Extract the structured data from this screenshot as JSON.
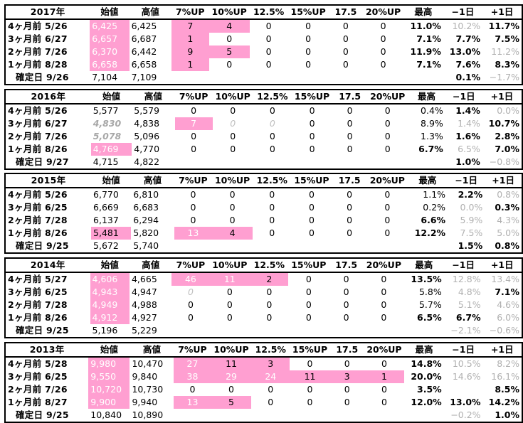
{
  "headers": [
    "始値",
    "高値",
    "7%UP",
    "10%UP",
    "12.5%",
    "15%UP",
    "17.5",
    "20%UP",
    "最高",
    "−1日",
    "+1日"
  ],
  "blocks": [
    {
      "year": "2017年",
      "rows": [
        {
          "label": "4ヶ月前  5/26",
          "open": "6,425",
          "high": "6,425",
          "c": [
            "7",
            "4",
            "0",
            "0",
            "0",
            "0"
          ],
          "max": "11.0%",
          "m1": "10.2%",
          "p1": "11.7%"
        },
        {
          "label": "3ヶ月前  6/27",
          "open": "6,657",
          "high": "6,687",
          "c": [
            "1",
            "0",
            "0",
            "0",
            "0",
            "0"
          ],
          "max": "7.1%",
          "m1": "7.7%",
          "p1": "7.5%"
        },
        {
          "label": "2ヶ月前  7/26",
          "open": "6,370",
          "high": "6,442",
          "c": [
            "9",
            "5",
            "0",
            "0",
            "0",
            "0"
          ],
          "max": "11.9%",
          "m1": "13.0%",
          "p1": "11.2%"
        },
        {
          "label": "1ヶ月前  8/28",
          "open": "6,658",
          "high": "6,658",
          "c": [
            "1",
            "0",
            "0",
            "0",
            "0",
            "0"
          ],
          "max": "7.1%",
          "m1": "7.6%",
          "p1": "8.3%"
        }
      ],
      "confirm": {
        "label": "確定日  9/26",
        "open": "7,104",
        "high": "7,109",
        "m1": "0.1%",
        "p1": "−1.7%"
      }
    },
    {
      "year": "2016年",
      "rows": [
        {
          "label": "4ヶ月前  5/26",
          "open": "5,577",
          "high": "5,579",
          "c": [
            "0",
            "0",
            "0",
            "0",
            "0",
            "0"
          ],
          "max": "0.4%",
          "m1": "1.4%",
          "p1": "0.0%"
        },
        {
          "label": "3ヶ月前  6/27",
          "open": "4,830",
          "high": "4,838",
          "c": [
            "7",
            "0",
            "0",
            "0",
            "0",
            "0"
          ],
          "max": "8.9%",
          "m1": "1.4%",
          "p1": "10.7%"
        },
        {
          "label": "2ヶ月前  7/26",
          "open": "5,078",
          "high": "5,096",
          "c": [
            "0",
            "0",
            "0",
            "0",
            "0",
            "0"
          ],
          "max": "1.3%",
          "m1": "1.6%",
          "p1": "2.8%"
        },
        {
          "label": "1ヶ月前  8/26",
          "open": "4,769",
          "high": "4,770",
          "c": [
            "0",
            "0",
            "0",
            "0",
            "0",
            "0"
          ],
          "max": "6.7%",
          "m1": "6.5%",
          "p1": "7.0%"
        }
      ],
      "confirm": {
        "label": "確定日  9/27",
        "open": "4,715",
        "high": "4,822",
        "m1": "1.0%",
        "p1": "−0.8%"
      }
    },
    {
      "year": "2015年",
      "rows": [
        {
          "label": "4ヶ月前  5/26",
          "open": "6,770",
          "high": "6,810",
          "c": [
            "0",
            "0",
            "0",
            "0",
            "0",
            "0"
          ],
          "max": "1.1%",
          "m1": "2.2%",
          "p1": "0.8%"
        },
        {
          "label": "3ヶ月前  6/25",
          "open": "6,669",
          "high": "6,683",
          "c": [
            "0",
            "0",
            "0",
            "0",
            "0",
            "0"
          ],
          "max": "0.2%",
          "m1": "0.0%",
          "p1": "0.3%"
        },
        {
          "label": "2ヶ月前  7/28",
          "open": "6,137",
          "high": "6,294",
          "c": [
            "0",
            "0",
            "0",
            "0",
            "0",
            "0"
          ],
          "max": "6.6%",
          "m1": "5.9%",
          "p1": "4.3%"
        },
        {
          "label": "1ヶ月前  8/26",
          "open": "5,481",
          "high": "5,820",
          "c": [
            "13",
            "4",
            "0",
            "0",
            "0",
            "0"
          ],
          "max": "12.2%",
          "m1": "7.5%",
          "p1": "5.0%"
        }
      ],
      "confirm": {
        "label": "確定日  9/25",
        "open": "5,672",
        "high": "5,740",
        "m1": "1.5%",
        "p1": "0.8%"
      }
    },
    {
      "year": "2014年",
      "rows": [
        {
          "label": "4ヶ月前  5/27",
          "open": "4,606",
          "high": "4,665",
          "c": [
            "46",
            "11",
            "2",
            "0",
            "0",
            "0"
          ],
          "max": "13.5%",
          "m1": "12.8%",
          "p1": "13.4%"
        },
        {
          "label": "3ヶ月前  6/25",
          "open": "4,943",
          "high": "4,947",
          "c": [
            "0",
            "0",
            "0",
            "0",
            "0",
            "0"
          ],
          "max": "5.8%",
          "m1": "4.8%",
          "p1": "7.1%"
        },
        {
          "label": "2ヶ月前  7/28",
          "open": "4,949",
          "high": "4,988",
          "c": [
            "0",
            "0",
            "0",
            "0",
            "0",
            "0"
          ],
          "max": "5.7%",
          "m1": "5.1%",
          "p1": "4.6%"
        },
        {
          "label": "1ヶ月前  8/26",
          "open": "4,912",
          "high": "4,927",
          "c": [
            "0",
            "0",
            "0",
            "0",
            "0",
            "0"
          ],
          "max": "6.5%",
          "m1": "6.7%",
          "p1": "6.0%"
        }
      ],
      "confirm": {
        "label": "確定日  9/25",
        "open": "5,196",
        "high": "5,229",
        "m1": "−2.1%",
        "p1": "−0.6%"
      }
    },
    {
      "year": "2013年",
      "rows": [
        {
          "label": "4ヶ月前  5/28",
          "open": "9,980",
          "high": "10,470",
          "c": [
            "27",
            "11",
            "3",
            "0",
            "0",
            "0"
          ],
          "max": "14.8%",
          "m1": "10.5%",
          "p1": "8.2%"
        },
        {
          "label": "3ヶ月前  6/25",
          "open": "9,550",
          "high": "9,840",
          "c": [
            "38",
            "29",
            "24",
            "11",
            "3",
            "1"
          ],
          "max": "20.0%",
          "m1": "14.6%",
          "p1": "16.1%"
        },
        {
          "label": "2ヶ月前  7/26",
          "open": "10,720",
          "high": "10,730",
          "c": [
            "0",
            "0",
            "0",
            "0",
            "0",
            "0"
          ],
          "max": "3.5%",
          "m1": "2.5%",
          "p1": "8.5%"
        },
        {
          "label": "1ヶ月前  8/27",
          "open": "9,900",
          "high": "9,940",
          "c": [
            "13",
            "5",
            "0",
            "0",
            "0",
            "0"
          ],
          "max": "12.0%",
          "m1": "13.0%",
          "p1": "14.2%"
        }
      ],
      "confirm": {
        "label": "確定日  9/25",
        "open": "10,840",
        "high": "10,890",
        "m1": "−0.2%",
        "p1": "1.0%"
      }
    }
  ],
  "style": {
    "highlight_color": "#ff9fd1",
    "muted_text_color": "#b0b0b0"
  }
}
